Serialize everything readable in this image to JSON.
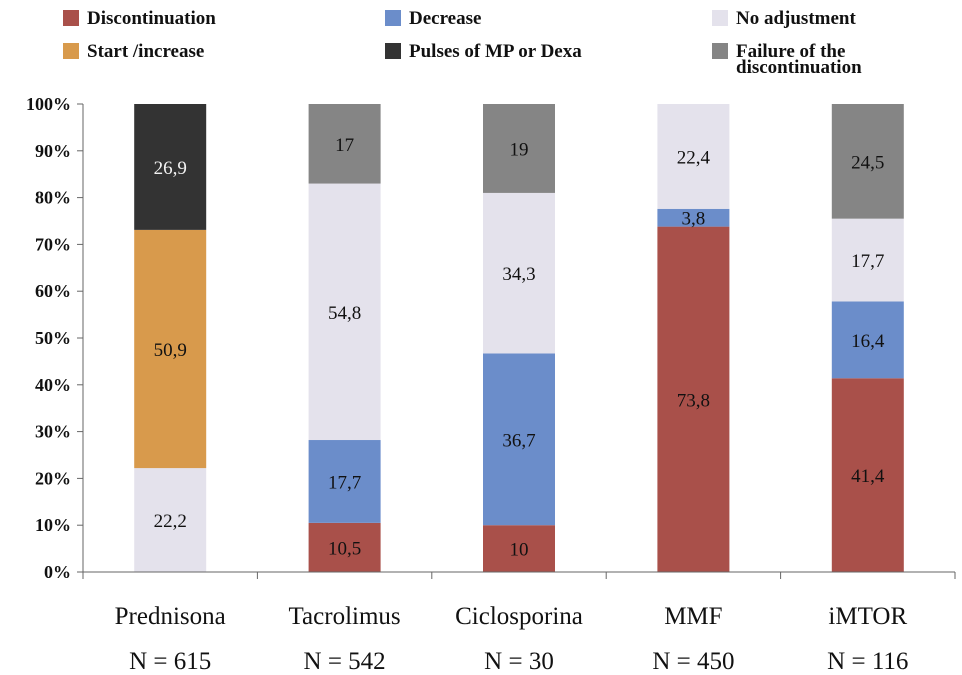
{
  "chart_data": {
    "type": "bar",
    "stacked": true,
    "categories": [
      "Prednisona",
      "Tacrolimus",
      "Ciclosporina",
      "MMF",
      "iMTOR"
    ],
    "category_counts": [
      "N = 615",
      "N = 542",
      "N = 30",
      "N = 450",
      "N = 116"
    ],
    "ylim": [
      0,
      100
    ],
    "y_ticks": [
      "0%",
      "10%",
      "20%",
      "30%",
      "40%",
      "50%",
      "60%",
      "70%",
      "80%",
      "90%",
      "100%"
    ],
    "grid": false,
    "legend_position": "top",
    "series": [
      {
        "name": "Discontinuation",
        "color": "#a9504a",
        "values": [
          null,
          10.5,
          10,
          73.8,
          41.4
        ],
        "labels": [
          "",
          "10,5",
          "10",
          "73,8",
          "41,4"
        ]
      },
      {
        "name": "Decrease",
        "color": "#6b8dca",
        "values": [
          null,
          17.7,
          36.7,
          3.8,
          16.4
        ],
        "labels": [
          "",
          "17,7",
          "36,7",
          "3,8",
          "16,4"
        ]
      },
      {
        "name": "No adjustment",
        "color": "#e4e2ec",
        "values": [
          22.2,
          54.8,
          34.3,
          22.4,
          17.7
        ],
        "labels": [
          "22,2",
          "54,8",
          "34,3",
          "22,4",
          "17,7"
        ]
      },
      {
        "name": "Start /increase",
        "color": "#d89a4c",
        "values": [
          50.9,
          null,
          null,
          null,
          null
        ],
        "labels": [
          "50,9",
          "",
          "",
          "",
          ""
        ]
      },
      {
        "name": "Pulses of MP or Dexa",
        "color": "#333333",
        "values": [
          26.9,
          null,
          null,
          null,
          null
        ],
        "labels": [
          "26,9",
          "",
          "",
          "",
          ""
        ]
      },
      {
        "name": "Failure of the discontinuation",
        "color": "#858585",
        "values": [
          null,
          17,
          19,
          null,
          24.5
        ],
        "labels": [
          "",
          "17",
          "19",
          "",
          "24,5"
        ]
      }
    ],
    "legend": [
      {
        "label": "Discontinuation",
        "color": "#a9504a"
      },
      {
        "label": "Decrease",
        "color": "#6b8dca"
      },
      {
        "label": "No adjustment",
        "color": "#e4e2ec"
      },
      {
        "label": "Start /increase",
        "color": "#d89a4c"
      },
      {
        "label": "Pulses of MP or Dexa",
        "color": "#333333"
      },
      {
        "label": "Failure of the",
        "label_line2": "discontinuation",
        "color": "#858585"
      }
    ]
  }
}
